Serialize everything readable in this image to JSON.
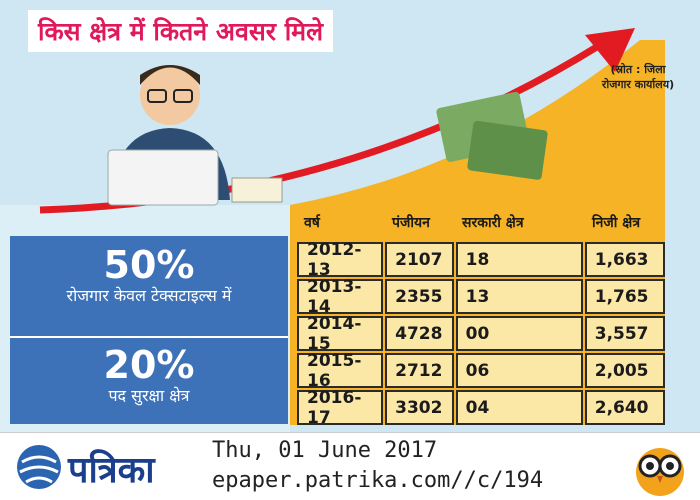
{
  "title": "किस क्षेत्र में कितने अवसर मिले",
  "source": "(स्रोत : जिला रोजगार कार्यालय)",
  "stats": [
    {
      "value": "50%",
      "label": "रोजगार केवल टेक्सटाइल्स में"
    },
    {
      "value": "20%",
      "label": "पद सुरक्षा क्षेत्र"
    }
  ],
  "table": {
    "header": [
      "वर्ष",
      "पंजीयन",
      "सरकारी क्षेत्र",
      "निजी क्षेत्र"
    ],
    "rows": [
      [
        "2012-13",
        "2107",
        "18",
        "1,663"
      ],
      [
        "2013-14",
        "2355",
        "13",
        "1,765"
      ],
      [
        "2014-15",
        "4728",
        "00",
        "3,557"
      ],
      [
        "2015-16",
        "2712",
        "06",
        "2,005"
      ],
      [
        "2016-17",
        "3302",
        "04",
        "2,640"
      ]
    ]
  },
  "footer": {
    "brand": "पत्रिका",
    "date": "Thu, 01 June 2017",
    "url": "epaper.patrika.com//c/194"
  }
}
